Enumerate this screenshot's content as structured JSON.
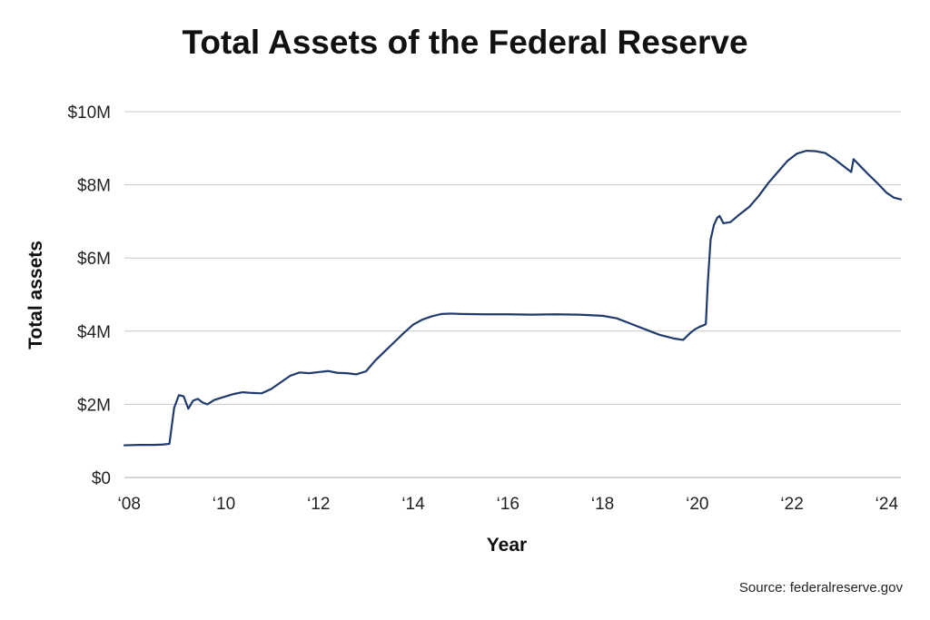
{
  "chart_data": {
    "type": "line",
    "title": "Total Assets of the Federal Reserve",
    "xlabel": "Year",
    "ylabel": "Total assets",
    "source": "Source: federalreserve.gov",
    "x_range": [
      2007.9,
      2024.3
    ],
    "ylim": [
      0,
      10
    ],
    "y_unit": "millions of dollars",
    "y_ticks": [
      {
        "value": 0,
        "label": "$0"
      },
      {
        "value": 2,
        "label": "$2M"
      },
      {
        "value": 4,
        "label": "$4M"
      },
      {
        "value": 6,
        "label": "$6M"
      },
      {
        "value": 8,
        "label": "$8M"
      },
      {
        "value": 10,
        "label": "$10M"
      }
    ],
    "x_ticks": [
      {
        "value": 2008,
        "label": "‘08"
      },
      {
        "value": 2010,
        "label": "‘10"
      },
      {
        "value": 2012,
        "label": "‘12"
      },
      {
        "value": 2014,
        "label": "‘14"
      },
      {
        "value": 2016,
        "label": "‘16"
      },
      {
        "value": 2018,
        "label": "‘18"
      },
      {
        "value": 2020,
        "label": "‘20"
      },
      {
        "value": 2022,
        "label": "‘22"
      },
      {
        "value": 2024,
        "label": "‘24"
      }
    ],
    "grid": true,
    "legend": "none",
    "colors": {
      "line": "#1f3a6d",
      "grid": "#c8c8c8"
    },
    "series": [
      {
        "x": [
          2007.9,
          2008.2,
          2008.5,
          2008.7,
          2008.85,
          2008.95,
          2009.05,
          2009.15,
          2009.25,
          2009.35,
          2009.45,
          2009.55,
          2009.65,
          2009.8,
          2010.0,
          2010.2,
          2010.4,
          2010.6,
          2010.8,
          2011.0,
          2011.2,
          2011.4,
          2011.6,
          2011.8,
          2012.0,
          2012.2,
          2012.4,
          2012.6,
          2012.8,
          2013.0,
          2013.2,
          2013.4,
          2013.6,
          2013.8,
          2014.0,
          2014.2,
          2014.4,
          2014.6,
          2014.8,
          2015.0,
          2015.5,
          2016.0,
          2016.5,
          2017.0,
          2017.5,
          2018.0,
          2018.3,
          2018.6,
          2018.9,
          2019.2,
          2019.5,
          2019.7,
          2019.85,
          2019.95,
          2020.05,
          2020.15,
          2020.18,
          2020.22,
          2020.28,
          2020.35,
          2020.42,
          2020.47,
          2020.55,
          2020.7,
          2020.9,
          2021.1,
          2021.3,
          2021.5,
          2021.7,
          2021.9,
          2022.1,
          2022.3,
          2022.5,
          2022.7,
          2022.9,
          2023.1,
          2023.25,
          2023.3,
          2023.45,
          2023.6,
          2023.8,
          2024.0,
          2024.15,
          2024.3
        ],
        "values": [
          0.88,
          0.89,
          0.89,
          0.9,
          0.92,
          1.9,
          2.25,
          2.22,
          1.88,
          2.1,
          2.15,
          2.05,
          2.0,
          2.12,
          2.2,
          2.28,
          2.33,
          2.31,
          2.3,
          2.42,
          2.6,
          2.78,
          2.87,
          2.85,
          2.88,
          2.91,
          2.86,
          2.85,
          2.82,
          2.9,
          3.2,
          3.45,
          3.7,
          3.95,
          4.18,
          4.32,
          4.41,
          4.47,
          4.48,
          4.47,
          4.46,
          4.46,
          4.45,
          4.46,
          4.45,
          4.42,
          4.35,
          4.2,
          4.05,
          3.9,
          3.8,
          3.76,
          3.95,
          4.05,
          4.12,
          4.17,
          4.2,
          5.3,
          6.5,
          6.9,
          7.1,
          7.15,
          6.95,
          6.98,
          7.2,
          7.4,
          7.7,
          8.05,
          8.35,
          8.65,
          8.85,
          8.93,
          8.92,
          8.87,
          8.7,
          8.5,
          8.35,
          8.7,
          8.5,
          8.3,
          8.05,
          7.78,
          7.65,
          7.6
        ]
      }
    ]
  }
}
